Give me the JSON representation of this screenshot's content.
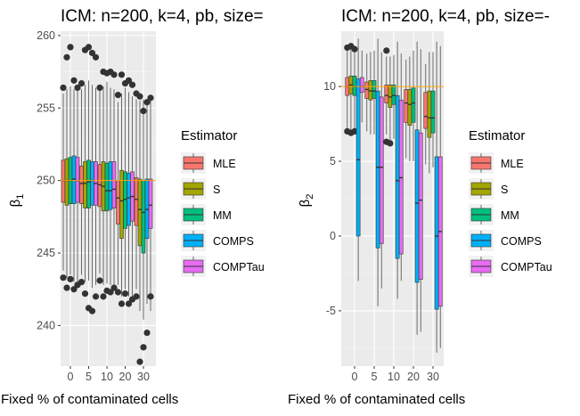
{
  "panels": [
    {
      "title": "ICM: n=200, k=4, pb, size=",
      "ylabel_main": "β",
      "ylabel_sub": "1",
      "xlabel": "Fixed % of contaminated cells",
      "legend_title": "Estimator",
      "legend_labels": [
        "MLE",
        "S",
        "MM",
        "COMPS",
        "COMPTau"
      ]
    },
    {
      "title": "ICM: n=200, k=4, pb, size=-",
      "ylabel_main": "β",
      "ylabel_sub": "2",
      "xlabel": "Fixed % of contaminated cells",
      "legend_title": "Estimator",
      "legend_labels": [
        "MLE",
        "S",
        "MM",
        "COMPS",
        "COMPTau"
      ]
    }
  ],
  "colors": {
    "MLE": "#F8766D",
    "S": "#A3A500",
    "MM": "#00BF7D",
    "COMPS": "#00B0F6",
    "COMPTau": "#E76BF3",
    "panel_bg": "#EBEBEB",
    "grid": "#ffffff",
    "reference_line": "#FFA500"
  },
  "chart_data": [
    {
      "type": "box",
      "title": "ICM: n=200, k=4, pb, size=",
      "xlabel": "Fixed % of contaminated cells",
      "ylabel": "β1",
      "categories": [
        "0",
        "5",
        "10",
        "20",
        "30"
      ],
      "y_ticks": [
        240,
        245,
        250,
        255,
        260
      ],
      "ylim": [
        237.2,
        260.3
      ],
      "reference_line": 250,
      "legend_title": "Estimator",
      "legend_position": "right",
      "series": [
        {
          "name": "MLE",
          "boxes": [
            {
              "min": 243.8,
              "q1": 248.5,
              "median": 250.0,
              "q3": 251.4,
              "max": 256.0
            },
            {
              "min": 243.5,
              "q1": 248.4,
              "median": 249.8,
              "q3": 251.0,
              "max": 256.3
            },
            {
              "min": 243.6,
              "q1": 248.2,
              "median": 249.7,
              "q3": 251.1,
              "max": 256.2
            },
            {
              "min": 242.8,
              "q1": 247.0,
              "median": 248.8,
              "q3": 250.0,
              "max": 255.4
            },
            {
              "min": 242.5,
              "q1": 246.9,
              "median": 248.7,
              "q3": 250.2,
              "max": 255.6
            }
          ],
          "outliers": [
            [
              0,
              243.3
            ],
            [
              0,
              256.4
            ],
            [
              1,
              243.0
            ],
            [
              1,
              256.7
            ],
            [
              2,
              243.1
            ],
            [
              2,
              256.4
            ],
            [
              3,
              242.3
            ],
            [
              3,
              255.9
            ],
            [
              4,
              242.0
            ],
            [
              4,
              256.0
            ]
          ]
        },
        {
          "name": "S",
          "boxes": [
            {
              "min": 243.3,
              "q1": 248.3,
              "median": 250.0,
              "q3": 251.5,
              "max": 256.3
            },
            {
              "min": 243.0,
              "q1": 248.1,
              "median": 249.8,
              "q3": 251.3,
              "max": 256.6
            },
            {
              "min": 242.8,
              "q1": 247.9,
              "median": 249.6,
              "q3": 251.3,
              "max": 256.5
            },
            {
              "min": 242.0,
              "q1": 246.0,
              "median": 248.6,
              "q3": 250.7,
              "max": 256.0
            },
            {
              "min": 241.0,
              "q1": 245.5,
              "median": 248.0,
              "q3": 250.1,
              "max": 255.5
            }
          ],
          "outliers": [
            [
              0,
              258.5
            ],
            [
              0,
              242.6
            ],
            [
              1,
              259.0
            ],
            [
              1,
              242.2
            ],
            [
              2,
              257.5
            ],
            [
              2,
              242.0
            ],
            [
              3,
              257.3
            ],
            [
              3,
              241.5
            ],
            [
              4,
              237.5
            ],
            [
              4,
              255.8
            ]
          ]
        },
        {
          "name": "MM",
          "boxes": [
            {
              "min": 243.5,
              "q1": 248.4,
              "median": 250.0,
              "q3": 251.6,
              "max": 256.5
            },
            {
              "min": 243.1,
              "q1": 248.1,
              "median": 249.9,
              "q3": 251.4,
              "max": 256.9
            },
            {
              "min": 242.9,
              "q1": 247.9,
              "median": 249.3,
              "q3": 251.2,
              "max": 256.8
            },
            {
              "min": 242.5,
              "q1": 246.7,
              "median": 248.7,
              "q3": 250.6,
              "max": 256.4
            },
            {
              "min": 240.4,
              "q1": 245.0,
              "median": 247.8,
              "q3": 250.0,
              "max": 255.6
            }
          ],
          "outliers": [
            [
              0,
              259.2
            ],
            [
              0,
              243.2
            ],
            [
              1,
              259.2
            ],
            [
              1,
              241.2
            ],
            [
              2,
              257.4
            ],
            [
              2,
              242.4
            ],
            [
              3,
              256.7
            ],
            [
              3,
              242.2
            ],
            [
              4,
              238.5
            ],
            [
              4,
              254.8
            ]
          ]
        },
        {
          "name": "COMPS",
          "boxes": [
            {
              "min": 243.0,
              "q1": 248.4,
              "median": 250.1,
              "q3": 251.7,
              "max": 256.3
            },
            {
              "min": 242.6,
              "q1": 248.3,
              "median": 250.0,
              "q3": 251.3,
              "max": 256.6
            },
            {
              "min": 242.8,
              "q1": 248.0,
              "median": 249.3,
              "q3": 251.3,
              "max": 256.4
            },
            {
              "min": 242.0,
              "q1": 246.9,
              "median": 248.8,
              "q3": 250.5,
              "max": 256.1
            },
            {
              "min": 241.5,
              "q1": 246.0,
              "median": 248.0,
              "q3": 250.1,
              "max": 255.5
            }
          ],
          "outliers": [
            [
              0,
              242.5
            ],
            [
              0,
              256.9
            ],
            [
              1,
              241.0
            ],
            [
              1,
              258.8
            ],
            [
              2,
              242.3
            ],
            [
              2,
              257.5
            ],
            [
              3,
              241.5
            ],
            [
              3,
              256.9
            ],
            [
              4,
              239.5
            ],
            [
              4,
              255.4
            ]
          ]
        },
        {
          "name": "COMPTau",
          "boxes": [
            {
              "min": 243.0,
              "q1": 248.5,
              "median": 250.0,
              "q3": 251.6,
              "max": 256.2
            },
            {
              "min": 242.8,
              "q1": 248.3,
              "median": 249.8,
              "q3": 251.3,
              "max": 256.4
            },
            {
              "min": 242.7,
              "q1": 248.1,
              "median": 249.4,
              "q3": 251.3,
              "max": 256.3
            },
            {
              "min": 242.0,
              "q1": 247.2,
              "median": 248.9,
              "q3": 250.6,
              "max": 255.8
            },
            {
              "min": 241.0,
              "q1": 246.7,
              "median": 248.3,
              "q3": 250.1,
              "max": 255.5
            }
          ],
          "outliers": [
            [
              0,
              242.8
            ],
            [
              0,
              256.4
            ],
            [
              1,
              242.0
            ],
            [
              1,
              258.5
            ],
            [
              2,
              242.6
            ],
            [
              2,
              257.3
            ],
            [
              3,
              241.8
            ],
            [
              3,
              256.6
            ],
            [
              4,
              242.0
            ],
            [
              4,
              255.7
            ]
          ]
        }
      ]
    },
    {
      "type": "box",
      "title": "ICM: n=200, k=4, pb, size=-",
      "xlabel": "Fixed % of contaminated cells",
      "ylabel": "β2",
      "categories": [
        "0",
        "5",
        "10",
        "20",
        "30"
      ],
      "y_ticks": [
        -5,
        0,
        5,
        10
      ],
      "ylim": [
        -8.7,
        13.7
      ],
      "reference_line": 10,
      "legend_title": "Estimator",
      "legend_position": "right",
      "series": [
        {
          "name": "MLE",
          "boxes": [
            {
              "min": 7.2,
              "q1": 9.4,
              "median": 10.0,
              "q3": 10.6,
              "max": 12.4
            },
            {
              "min": 7.0,
              "q1": 9.2,
              "median": 9.8,
              "q3": 10.3,
              "max": 12.2
            },
            {
              "min": 6.8,
              "q1": 8.9,
              "median": 9.4,
              "q3": 10.1,
              "max": 12.0
            },
            {
              "min": 5.2,
              "q1": 7.6,
              "median": 8.9,
              "q3": 9.8,
              "max": 11.8
            },
            {
              "min": 4.8,
              "q1": 7.2,
              "median": 8.0,
              "q3": 9.6,
              "max": 11.5
            }
          ],
          "outliers": [
            [
              0,
              12.6
            ],
            [
              0,
              7.0
            ],
            [
              2,
              12.4
            ],
            [
              2,
              6.3
            ]
          ]
        },
        {
          "name": "S",
          "boxes": [
            {
              "min": 7.0,
              "q1": 9.5,
              "median": 10.1,
              "q3": 10.7,
              "max": 12.5
            },
            {
              "min": 6.8,
              "q1": 9.1,
              "median": 9.7,
              "q3": 10.4,
              "max": 12.3
            },
            {
              "min": 6.4,
              "q1": 8.6,
              "median": 9.3,
              "q3": 10.1,
              "max": 12.0
            },
            {
              "min": 5.0,
              "q1": 7.4,
              "median": 8.8,
              "q3": 9.8,
              "max": 12.0
            },
            {
              "min": 4.2,
              "q1": 6.6,
              "median": 7.9,
              "q3": 9.7,
              "max": 12.3
            }
          ],
          "outliers": [
            [
              0,
              12.7
            ],
            [
              0,
              6.9
            ],
            [
              2,
              6.2
            ]
          ]
        },
        {
          "name": "MM",
          "boxes": [
            {
              "min": 7.1,
              "q1": 9.4,
              "median": 10.0,
              "q3": 10.7,
              "max": 12.5
            },
            {
              "min": 6.8,
              "q1": 9.2,
              "median": 9.7,
              "q3": 10.4,
              "max": 12.4
            },
            {
              "min": 6.5,
              "q1": 8.8,
              "median": 9.4,
              "q3": 10.1,
              "max": 12.1
            },
            {
              "min": 5.0,
              "q1": 7.6,
              "median": 8.9,
              "q3": 9.9,
              "max": 12.4
            },
            {
              "min": 4.6,
              "q1": 6.9,
              "median": 7.9,
              "q3": 9.7,
              "max": 12.3
            }
          ],
          "outliers": [
            [
              0,
              12.5
            ],
            [
              0,
              7.0
            ]
          ]
        },
        {
          "name": "COMPS",
          "boxes": [
            {
              "min": -3.0,
              "q1": 0.0,
              "median": 5.1,
              "q3": 10.5,
              "max": 13.2
            },
            {
              "min": -4.7,
              "q1": -0.8,
              "median": 4.6,
              "q3": 9.7,
              "max": 13.2
            },
            {
              "min": -4.2,
              "q1": -1.5,
              "median": 3.7,
              "q3": 9.4,
              "max": 13.0
            },
            {
              "min": -6.6,
              "q1": -3.1,
              "median": 2.2,
              "q3": 7.1,
              "max": 13.0
            },
            {
              "min": -7.8,
              "q1": -4.9,
              "median": 0.0,
              "q3": 5.3,
              "max": 13.0
            }
          ],
          "outliers": []
        },
        {
          "name": "COMPTau",
          "boxes": [
            {
              "min": 7.6,
              "q1": 9.6,
              "median": 10.0,
              "q3": 10.6,
              "max": 12.4
            },
            {
              "min": -3.5,
              "q1": -0.5,
              "median": 4.6,
              "q3": 9.3,
              "max": 12.3
            },
            {
              "min": -3.0,
              "q1": -1.2,
              "median": 3.9,
              "q3": 9.1,
              "max": 12.2
            },
            {
              "min": -6.4,
              "q1": -2.9,
              "median": 2.4,
              "q3": 6.9,
              "max": 12.5
            },
            {
              "min": -7.5,
              "q1": -4.7,
              "median": 0.3,
              "q3": 5.3,
              "max": 12.7
            }
          ],
          "outliers": []
        }
      ]
    }
  ]
}
